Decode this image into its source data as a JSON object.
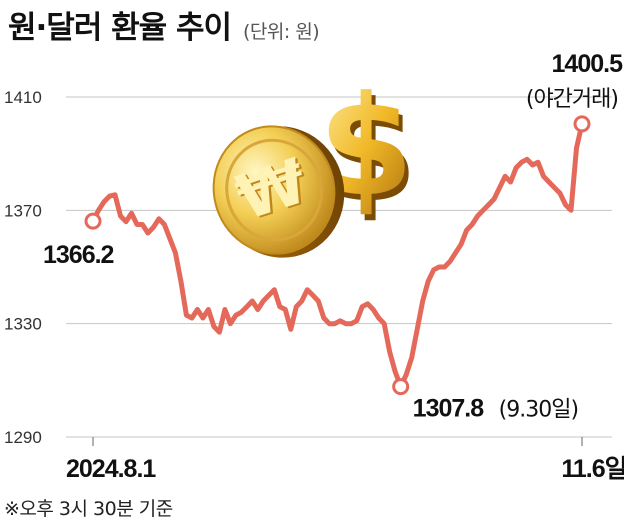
{
  "chart_data": {
    "type": "line",
    "title": "원·달러 환율 추이",
    "unit": "(단위: 원)",
    "footnote": "※오후 3시 30분 기준",
    "ylim": [
      1290,
      1420
    ],
    "yticks": [
      1410,
      1370,
      1330,
      1290
    ],
    "grid": true,
    "x_tick_labels": [
      "2024.8.1",
      "11.6일"
    ],
    "series": [
      {
        "color": "#e4695a",
        "values": [
          1366.2,
          1370,
          1373,
          1375,
          1375.5,
          1368,
          1366,
          1369,
          1365,
          1365,
          1362,
          1364,
          1367,
          1365,
          1360,
          1355,
          1345,
          1333,
          1332,
          1335,
          1332,
          1335,
          1329,
          1327,
          1335,
          1330,
          1333,
          1334,
          1336,
          1338,
          1335,
          1338,
          1340,
          1342,
          1336,
          1335,
          1328,
          1336,
          1338,
          1342,
          1340,
          1338,
          1332,
          1330,
          1330,
          1331,
          1330,
          1330,
          1331,
          1336,
          1337,
          1335,
          1332,
          1330,
          1320,
          1313,
          1307.8,
          1312,
          1318,
          1328,
          1338,
          1345,
          1349,
          1350,
          1350,
          1352,
          1355,
          1358,
          1363,
          1365,
          1368,
          1370,
          1372,
          1374,
          1378,
          1382,
          1380,
          1385,
          1387,
          1388,
          1386,
          1387,
          1382,
          1380,
          1378,
          1376,
          1372,
          1370,
          1392,
          1400.5
        ]
      }
    ],
    "annotations": [
      {
        "index": 0,
        "label": "1366.2",
        "note": ""
      },
      {
        "index": 56,
        "label": "1307.8",
        "note": "(9.30일)"
      },
      {
        "index": 89,
        "label": "1400.5",
        "note": "(야간거래)"
      }
    ],
    "illustration": [
      "won-coin-icon",
      "dollar-sign-icon"
    ]
  }
}
